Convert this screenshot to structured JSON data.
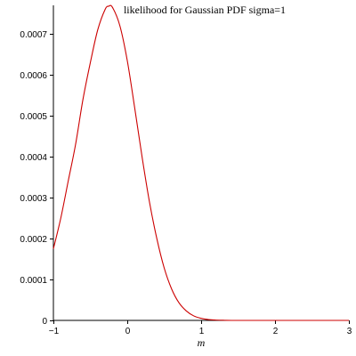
{
  "chart_data": {
    "type": "line",
    "title": "likelihood for Gaussian PDF sigma=1",
    "xlabel": "m",
    "ylabel": "",
    "xlim": [
      -1,
      3
    ],
    "ylim": [
      0,
      0.00077
    ],
    "x_ticks": [
      {
        "value": -1,
        "label": "−1"
      },
      {
        "value": 0,
        "label": "0"
      },
      {
        "value": 1,
        "label": "1"
      },
      {
        "value": 2,
        "label": "2"
      },
      {
        "value": 3,
        "label": "3"
      }
    ],
    "y_ticks": [
      {
        "value": 0,
        "label": "0"
      },
      {
        "value": 0.0001,
        "label": "0.0001"
      },
      {
        "value": 0.0002,
        "label": "0.0002"
      },
      {
        "value": 0.0003,
        "label": "0.0003"
      },
      {
        "value": 0.0004,
        "label": "0.0004"
      },
      {
        "value": 0.0005,
        "label": "0.0005"
      },
      {
        "value": 0.0006,
        "label": "0.0006"
      },
      {
        "value": 0.0007,
        "label": "0.0007"
      }
    ],
    "grid": false,
    "series": [
      {
        "color": "#cc0000",
        "x": [
          -1.0,
          -0.9,
          -0.8,
          -0.7,
          -0.6,
          -0.5,
          -0.4,
          -0.3,
          -0.25,
          -0.2,
          -0.1,
          0.0,
          0.1,
          0.2,
          0.3,
          0.4,
          0.5,
          0.6,
          0.7,
          0.8,
          0.9,
          1.0,
          1.1,
          1.2,
          1.3,
          1.5,
          2.0,
          2.5,
          3.0
        ],
        "y": [
          0.000175,
          0.00025,
          0.00034,
          0.00043,
          0.00054,
          0.00063,
          0.00071,
          0.00076,
          0.000768,
          0.000765,
          0.00072,
          0.000635,
          0.00052,
          0.0004,
          0.00029,
          0.0002,
          0.000128,
          7.7e-05,
          4.3e-05,
          2.3e-05,
          1.1e-05,
          5e-06,
          2e-06,
          8e-07,
          3e-07,
          0.0,
          0.0,
          0.0,
          0.0
        ]
      }
    ]
  }
}
